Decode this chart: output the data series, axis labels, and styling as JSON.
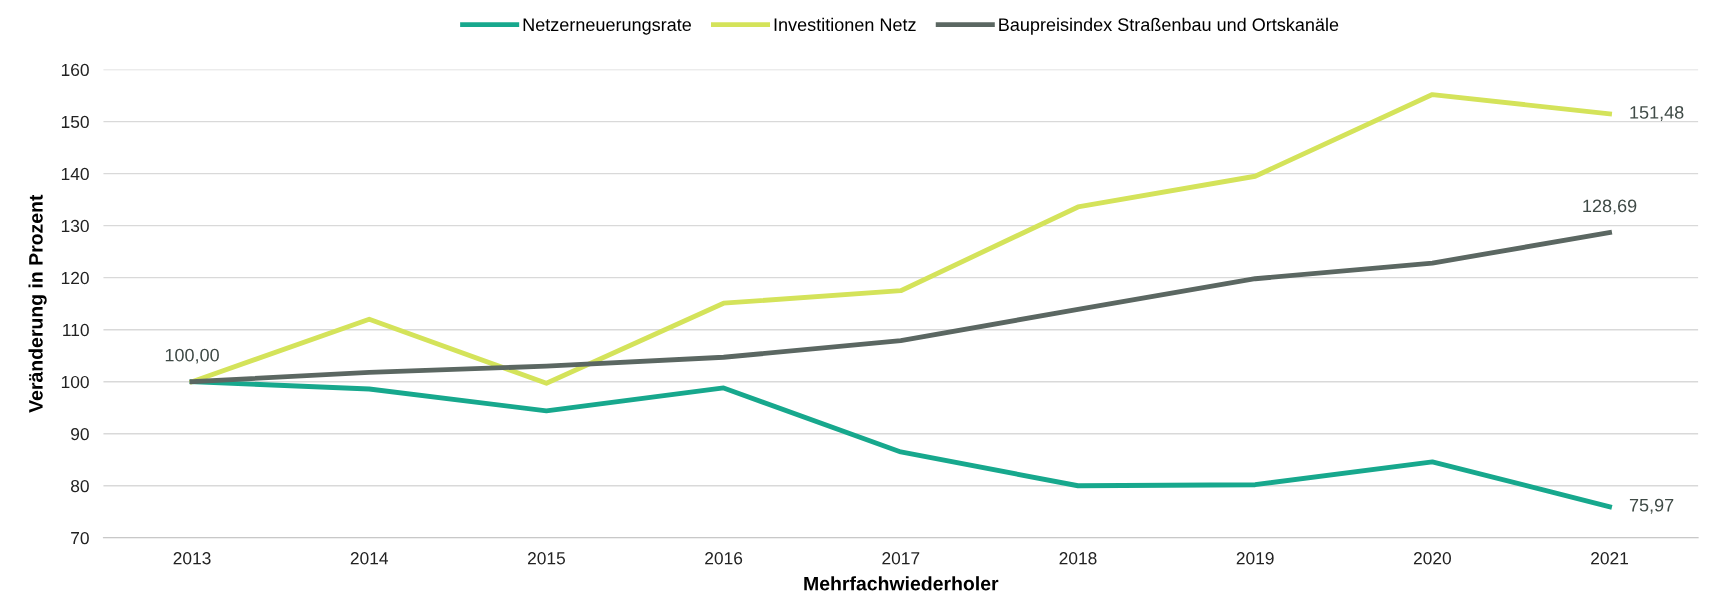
{
  "chart_data": {
    "type": "line",
    "xlabel": "Mehrfachwiederholer",
    "ylabel": "Veränderung in Prozent",
    "categories": [
      "2013",
      "2014",
      "2015",
      "2016",
      "2017",
      "2018",
      "2019",
      "2020",
      "2021"
    ],
    "series": [
      {
        "name": "Netzerneuerungsrate",
        "color": "#17a88d",
        "values": [
          100.0,
          98.6,
          94.4,
          98.8,
          86.5,
          80.0,
          80.2,
          84.6,
          75.97
        ],
        "value_labels": [
          null,
          null,
          null,
          null,
          null,
          null,
          null,
          null,
          "75,97"
        ]
      },
      {
        "name": "Investitionen Netz",
        "color": "#d4e35a",
        "values": [
          100.0,
          112.0,
          99.7,
          115.1,
          117.5,
          133.6,
          139.5,
          155.2,
          151.48
        ],
        "value_labels": [
          null,
          null,
          null,
          null,
          null,
          null,
          null,
          null,
          "151,48"
        ]
      },
      {
        "name": "Baupreisindex Straßenbau und Ortskanäle",
        "color": "#5b6762",
        "values": [
          100.0,
          101.8,
          103.0,
          104.7,
          107.9,
          113.9,
          119.8,
          122.8,
          128.69
        ],
        "value_labels": [
          "100,00",
          null,
          null,
          null,
          null,
          null,
          null,
          null,
          "128,69"
        ]
      }
    ],
    "ylim": [
      70,
      160
    ],
    "yticks": [
      70,
      80,
      90,
      100,
      110,
      120,
      130,
      140,
      150,
      160
    ],
    "grid": "y",
    "legend": "top",
    "marker": "none",
    "line_style": "solid"
  }
}
